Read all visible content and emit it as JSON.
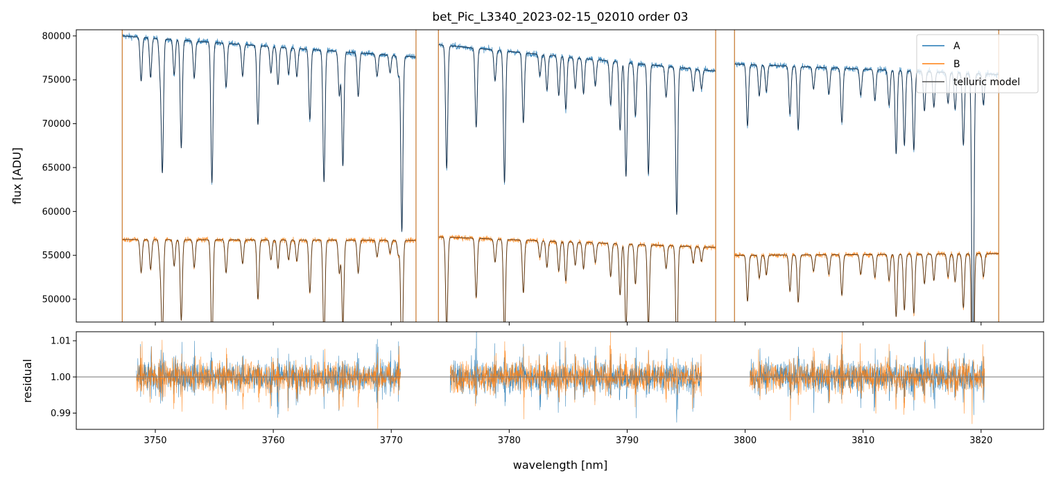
{
  "title": "bet_Pic_L3340_2023-02-15_02010  order 03",
  "colors": {
    "A": "#1f77b4",
    "B": "#ff7f0e",
    "model_on_A": "#1a3550",
    "model_on_B": "#5e3a17",
    "model_legend": "#555555",
    "axes": "#000000",
    "ref_line": "#777777"
  },
  "chart_data": [
    {
      "panel": "top",
      "type": "line",
      "ylabel": "flux [ADU]",
      "xlabel": "",
      "xlim": [
        3743.3,
        3825.3
      ],
      "ylim": [
        47400,
        80700
      ],
      "grid": false,
      "legend_position": "top-right",
      "yticks": [
        50000,
        55000,
        60000,
        65000,
        70000,
        75000,
        80000
      ],
      "ytick_labels": [
        "50000",
        "55000",
        "60000",
        "65000",
        "70000",
        "75000",
        "80000"
      ],
      "xticks": [
        3750,
        3760,
        3770,
        3780,
        3790,
        3800,
        3810,
        3820
      ],
      "legend": [
        "A",
        "B",
        "telluric model"
      ],
      "series": [
        {
          "name": "A",
          "segments": [
            {
              "x_range": [
                3747.2,
                3772.1
              ],
              "continuum_start": 80000,
              "continuum_end": 77600
            },
            {
              "x_range": [
                3774.0,
                3797.5
              ],
              "continuum_start": 79000,
              "continuum_end": 76000
            },
            {
              "x_range": [
                3799.1,
                3821.5
              ],
              "continuum_start": 76800,
              "continuum_end": 75600
            }
          ],
          "absorption_lines": [
            {
              "x": 3748.8,
              "depth": 5000
            },
            {
              "x": 3749.6,
              "depth": 4500
            },
            {
              "x": 3750.4,
              "depth": 3500
            },
            {
              "x": 3750.6,
              "depth": 15000
            },
            {
              "x": 3751.6,
              "depth": 4000
            },
            {
              "x": 3752.2,
              "depth": 12300
            },
            {
              "x": 3753.3,
              "depth": 4200
            },
            {
              "x": 3754.8,
              "depth": 16000
            },
            {
              "x": 3756.0,
              "depth": 5000
            },
            {
              "x": 3757.4,
              "depth": 3600
            },
            {
              "x": 3758.7,
              "depth": 9000
            },
            {
              "x": 3759.8,
              "depth": 3000
            },
            {
              "x": 3760.4,
              "depth": 4300
            },
            {
              "x": 3761.3,
              "depth": 3000
            },
            {
              "x": 3762.0,
              "depth": 3200
            },
            {
              "x": 3763.1,
              "depth": 8000
            },
            {
              "x": 3764.3,
              "depth": 15000
            },
            {
              "x": 3765.6,
              "depth": 5000
            },
            {
              "x": 3765.9,
              "depth": 13000
            },
            {
              "x": 3767.2,
              "depth": 5000
            },
            {
              "x": 3768.8,
              "depth": 2500
            },
            {
              "x": 3769.9,
              "depth": 2000
            },
            {
              "x": 3770.6,
              "depth": 2200
            },
            {
              "x": 3770.9,
              "depth": 20000
            },
            {
              "x": 3774.7,
              "depth": 14000
            },
            {
              "x": 3777.2,
              "depth": 9000
            },
            {
              "x": 3778.8,
              "depth": 3500
            },
            {
              "x": 3779.6,
              "depth": 15000
            },
            {
              "x": 3781.2,
              "depth": 8000
            },
            {
              "x": 3782.6,
              "depth": 2500
            },
            {
              "x": 3783.2,
              "depth": 4000
            },
            {
              "x": 3784.2,
              "depth": 4500
            },
            {
              "x": 3784.8,
              "depth": 6000
            },
            {
              "x": 3785.6,
              "depth": 3500
            },
            {
              "x": 3786.3,
              "depth": 4000
            },
            {
              "x": 3787.3,
              "depth": 3000
            },
            {
              "x": 3788.6,
              "depth": 5000
            },
            {
              "x": 3789.4,
              "depth": 7800
            },
            {
              "x": 3789.9,
              "depth": 13000
            },
            {
              "x": 3790.7,
              "depth": 6000
            },
            {
              "x": 3791.8,
              "depth": 12500
            },
            {
              "x": 3793.3,
              "depth": 3500
            },
            {
              "x": 3794.2,
              "depth": 16800
            },
            {
              "x": 3795.6,
              "depth": 2500
            },
            {
              "x": 3796.3,
              "depth": 2200
            },
            {
              "x": 3800.2,
              "depth": 7000
            },
            {
              "x": 3801.2,
              "depth": 3500
            },
            {
              "x": 3801.8,
              "depth": 3000
            },
            {
              "x": 3803.8,
              "depth": 5500
            },
            {
              "x": 3804.5,
              "depth": 7200
            },
            {
              "x": 3805.8,
              "depth": 2500
            },
            {
              "x": 3807.1,
              "depth": 3000
            },
            {
              "x": 3808.2,
              "depth": 6200
            },
            {
              "x": 3809.8,
              "depth": 3000
            },
            {
              "x": 3811.0,
              "depth": 3500
            },
            {
              "x": 3812.2,
              "depth": 4000
            },
            {
              "x": 3812.8,
              "depth": 9500
            },
            {
              "x": 3813.5,
              "depth": 8500
            },
            {
              "x": 3814.3,
              "depth": 9000
            },
            {
              "x": 3815.2,
              "depth": 4500
            },
            {
              "x": 3816.0,
              "depth": 4000
            },
            {
              "x": 3817.2,
              "depth": 3500
            },
            {
              "x": 3817.8,
              "depth": 4200
            },
            {
              "x": 3818.5,
              "depth": 8200
            },
            {
              "x": 3819.3,
              "depth": 35000
            },
            {
              "x": 3820.2,
              "depth": 3500
            }
          ]
        },
        {
          "name": "B",
          "segments": [
            {
              "x_range": [
                3747.2,
                3772.1
              ],
              "continuum_start": 56800,
              "continuum_end": 56700
            },
            {
              "x_range": [
                3774.0,
                3797.5
              ],
              "continuum_start": 57100,
              "continuum_end": 55900
            },
            {
              "x_range": [
                3799.1,
                3821.5
              ],
              "continuum_start": 55000,
              "continuum_end": 55200
            }
          ],
          "absorption_depth_scale": 0.75
        },
        {
          "name": "telluric model",
          "follows": [
            "A",
            "B"
          ],
          "notes": "smooth model drawn over each spectrum"
        }
      ]
    },
    {
      "panel": "bottom",
      "type": "line",
      "ylabel": "residual",
      "xlabel": "wavelength [nm]",
      "xlim": [
        3743.3,
        3825.3
      ],
      "ylim": [
        0.9855,
        1.0125
      ],
      "grid": false,
      "yticks": [
        0.99,
        1.0,
        1.01
      ],
      "ytick_labels": [
        "0.99",
        "1.00",
        "1.01"
      ],
      "xticks": [
        3750,
        3760,
        3770,
        3780,
        3790,
        3800,
        3810,
        3820
      ],
      "xtick_labels": [
        "3750",
        "3760",
        "3770",
        "3780",
        "3790",
        "3800",
        "3810",
        "3820"
      ],
      "reference_line": 1.0,
      "series": [
        {
          "name": "A",
          "segments": [
            [
              3748.4,
              3770.8
            ],
            [
              3775.0,
              3796.3
            ],
            [
              3800.4,
              3820.3
            ]
          ],
          "scatter": 0.004
        },
        {
          "name": "B",
          "segments": [
            [
              3748.4,
              3770.8
            ],
            [
              3775.0,
              3796.3
            ],
            [
              3800.4,
              3820.3
            ]
          ],
          "scatter": 0.004
        }
      ]
    }
  ]
}
